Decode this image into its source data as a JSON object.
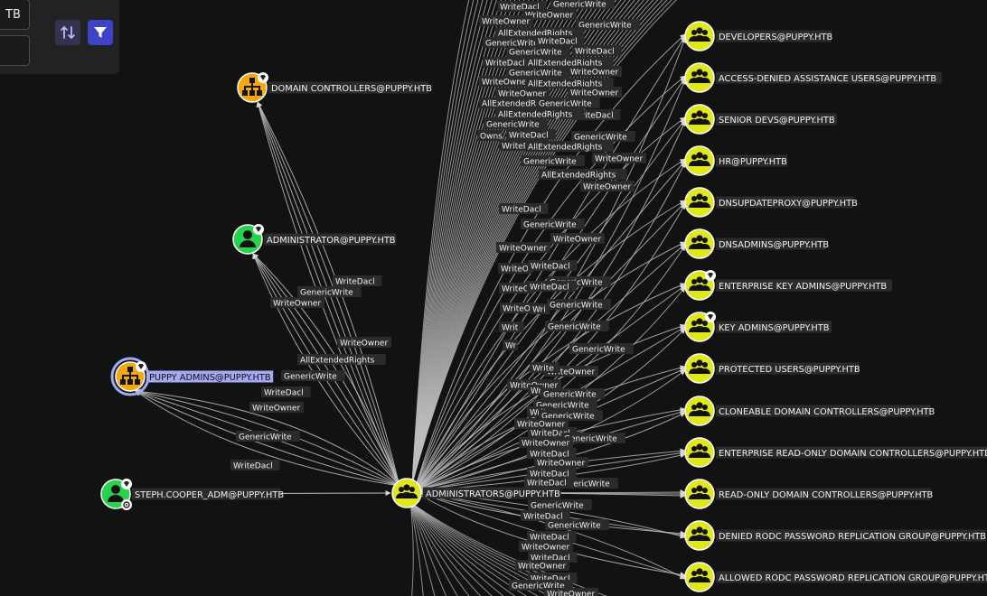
{
  "colors": {
    "background": "#121212",
    "panel": "#222222",
    "edge": "#bfbfbf",
    "label_bg": "#2b2b2b",
    "label_text": "#f2f2f2",
    "group_node": "#e1e81a",
    "ou_node": "#f6a70e",
    "user_node": "#26d44c",
    "selected_label": "#a3a9f2",
    "filter_button": "#3f43c8"
  },
  "search_panel": {
    "start_value": "TB",
    "end_value": "",
    "swap_icon": "swap-vertical-icon",
    "filter_icon": "filter-icon"
  },
  "nodes": {
    "domain_controllers": {
      "label": "DOMAIN CONTROLLERS@PUPPY.HTB",
      "type": "ou",
      "tier_zero": true
    },
    "administrator": {
      "label": "ADMINISTRATOR@PUPPY.HTB",
      "type": "user",
      "tier_zero": true
    },
    "puppy_admins": {
      "label": "PUPPY ADMINS@PUPPY.HTB",
      "type": "ou",
      "tier_zero": true,
      "selected": true
    },
    "steph_cooper_adm": {
      "label": "STEPH.COOPER_ADM@PUPPY.HTB",
      "type": "user",
      "tier_zero": true,
      "owned": true
    },
    "administrators": {
      "label": "ADMINISTRATORS@PUPPY.HTB",
      "type": "group"
    },
    "targets": [
      {
        "label": "DEVELOPERS@PUPPY.HTB",
        "tier_zero": false
      },
      {
        "label": "ACCESS-DENIED ASSISTANCE USERS@PUPPY.HTB",
        "tier_zero": false
      },
      {
        "label": "SENIOR DEVS@PUPPY.HTB",
        "tier_zero": false
      },
      {
        "label": "HR@PUPPY.HTB",
        "tier_zero": false
      },
      {
        "label": "DNSUPDATEPROXY@PUPPY.HTB",
        "tier_zero": false
      },
      {
        "label": "DNSADMINS@PUPPY.HTB",
        "tier_zero": false
      },
      {
        "label": "ENTERPRISE KEY ADMINS@PUPPY.HTB",
        "tier_zero": true
      },
      {
        "label": "KEY ADMINS@PUPPY.HTB",
        "tier_zero": true
      },
      {
        "label": "PROTECTED USERS@PUPPY.HTB",
        "tier_zero": false
      },
      {
        "label": "CLONEABLE DOMAIN CONTROLLERS@PUPPY.HTB",
        "tier_zero": false
      },
      {
        "label": "ENTERPRISE READ-ONLY DOMAIN CONTROLLERS@PUPPY.HTB",
        "tier_zero": false
      },
      {
        "label": "READ-ONLY DOMAIN CONTROLLERS@PUPPY.HTB",
        "tier_zero": false
      },
      {
        "label": "DENIED RODC PASSWORD REPLICATION GROUP@PUPPY.HTB",
        "tier_zero": false
      },
      {
        "label": "ALLOWED RODC PASSWORD REPLICATION GROUP@PUPPY.HTB",
        "tier_zero": false
      }
    ]
  },
  "left_edges": {
    "admin_to_administrator": [
      "WriteDacl",
      "GenericWrite",
      "WriteOwner",
      "WriteOwner",
      "AllExtendedRights"
    ],
    "admin_to_puppy_admins": [
      "GenericWrite",
      "WriteDacl",
      "WriteOwner",
      "GenericWrite",
      "WriteDacl"
    ]
  },
  "fan_edge_labels": [
    {
      "text": "WriteDacl"
    },
    {
      "text": "GenericWrite"
    },
    {
      "text": "WriteOwner"
    },
    {
      "text": "WriteOwner"
    },
    {
      "text": "GenericWrite"
    },
    {
      "text": "AllExtendedRights"
    },
    {
      "text": "GenericWrite"
    },
    {
      "text": "WriteDacl"
    },
    {
      "text": "GenericWrite"
    },
    {
      "text": "WriteDacl"
    },
    {
      "text": "WriteDacl"
    },
    {
      "text": "AllExtendedRights"
    },
    {
      "text": "GenericWrite"
    },
    {
      "text": "WriteOwner"
    },
    {
      "text": "WriteOwner"
    },
    {
      "text": "AllExtendedRights"
    },
    {
      "text": "WriteOwner"
    },
    {
      "text": "WriteOwner"
    },
    {
      "text": "AllExtendedRights"
    },
    {
      "text": "GenericWrite"
    },
    {
      "text": "WriteDacl"
    },
    {
      "text": "WriteDacl"
    },
    {
      "text": "AllExtendedRights"
    },
    {
      "text": "GenericWrite"
    },
    {
      "text": "WriteDacl"
    },
    {
      "text": "GenericWrite"
    },
    {
      "text": "WriteDacl"
    },
    {
      "text": "Owns"
    },
    {
      "text": "WriteDacl"
    },
    {
      "text": "AllExtendedRights"
    },
    {
      "text": "WriteOwner"
    },
    {
      "text": "GenericWrite"
    },
    {
      "text": "AllExtendedRights"
    },
    {
      "text": "WriteOwner"
    },
    {
      "text": "WriteDacl"
    },
    {
      "text": "GenericWrite"
    },
    {
      "text": "WriteOwner"
    },
    {
      "text": "WriteOwner"
    },
    {
      "text": "WriteO"
    },
    {
      "text": "WriteDacl"
    },
    {
      "text": "GenericWrite"
    },
    {
      "text": "WriteO"
    },
    {
      "text": "WriteDacl"
    },
    {
      "text": "GenericWrite"
    },
    {
      "text": "WriteO"
    },
    {
      "text": "Wri"
    },
    {
      "text": "GenericWrite"
    },
    {
      "text": "Writ"
    },
    {
      "text": "GenericWrite"
    },
    {
      "text": "Wr"
    },
    {
      "text": "WriteOwner"
    },
    {
      "text": "Write"
    },
    {
      "text": "WriteOwner"
    },
    {
      "text": "Wr"
    },
    {
      "text": "GenericWrite"
    },
    {
      "text": "GenericWrite"
    },
    {
      "text": "Writ"
    },
    {
      "text": "GenericWrite"
    },
    {
      "text": "WriteOwner"
    },
    {
      "text": "WriteDacl"
    },
    {
      "text": "GenericWrite"
    },
    {
      "text": "WriteOwner"
    },
    {
      "text": "WriteDacl"
    },
    {
      "text": "WriteOwner"
    },
    {
      "text": "WriteDacl"
    },
    {
      "text": "GenericWrite"
    },
    {
      "text": "WriteDacl"
    },
    {
      "text": "GenericWrite"
    },
    {
      "text": "WriteDacl"
    },
    {
      "text": "GenericWrite"
    },
    {
      "text": "WriteDacl"
    },
    {
      "text": "WriteOwner"
    },
    {
      "text": "WriteDacl"
    },
    {
      "text": "WriteOwner"
    },
    {
      "text": "WriteDacl"
    },
    {
      "text": "GenericWrite"
    },
    {
      "text": "WriteOwner"
    }
  ]
}
